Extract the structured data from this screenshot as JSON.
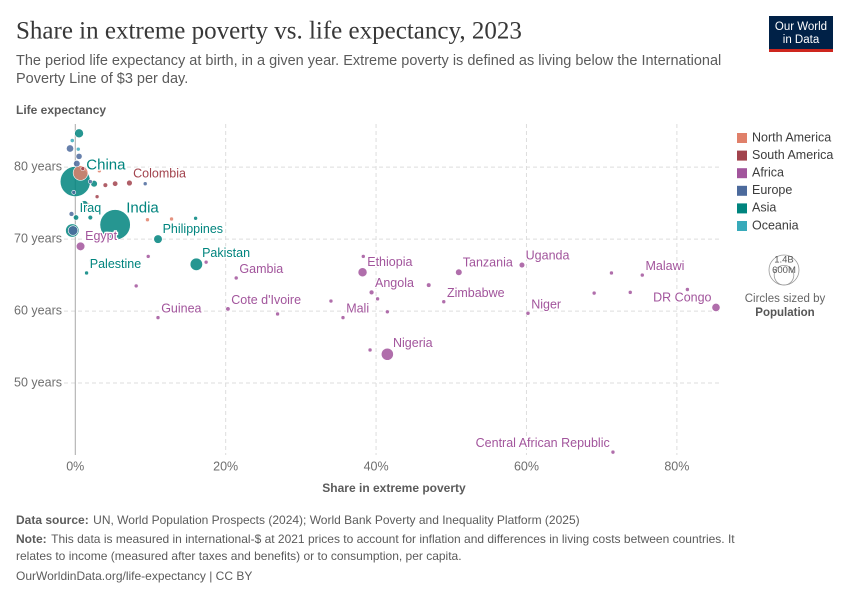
{
  "chart_data": {
    "type": "scatter",
    "title": "Share in extreme poverty vs. life expectancy, 2023",
    "subtitle": [
      "The period life expectancy at birth, in a given year. Extreme poverty is defined as living below the International",
      "Poverty Line of $3 per day."
    ],
    "y_label": "Life expectancy",
    "x_label": "Share in extreme poverty",
    "logo": [
      "Our World",
      "in Data"
    ],
    "xlim": [
      -1.5,
      86
    ],
    "ylim": [
      40,
      86
    ],
    "xticks": [
      {
        "value": 0,
        "label": "0%"
      },
      {
        "value": 20,
        "label": "20%"
      },
      {
        "value": 40,
        "label": "40%"
      },
      {
        "value": 60,
        "label": "60%"
      },
      {
        "value": 80,
        "label": "80%"
      }
    ],
    "yticks": [
      {
        "value": 50,
        "label": "50 years"
      },
      {
        "value": 60,
        "label": "60 years"
      },
      {
        "value": 70,
        "label": "70 years"
      },
      {
        "value": 80,
        "label": "80 years"
      }
    ],
    "grid": true,
    "legend_position": "right",
    "size_legend": {
      "title": "Circles sized by",
      "label": "Population",
      "values": [
        {
          "value": 1400,
          "label": "1.4B"
        },
        {
          "value": 600,
          "label": "600M"
        }
      ]
    },
    "series": [
      {
        "name": "North America",
        "color": "#e0806a",
        "x": [
          0.7,
          3.2,
          12.8,
          1.5,
          9.6
        ],
        "values": [
          79.2,
          79.5,
          72.8,
          74.5,
          72.7
        ],
        "sizes": [
          340,
          6,
          4,
          130,
          3
        ],
        "labels": [
          null,
          null,
          null,
          null,
          null
        ]
      },
      {
        "name": "South America",
        "color": "#a2434d",
        "x": [
          7.2,
          2.9,
          5.3,
          4.0,
          1.0,
          2.2
        ],
        "values": [
          77.8,
          75.9,
          77.7,
          77.5,
          79.8,
          74.0
        ],
        "sizes": [
          52,
          10,
          46,
          34,
          20,
          12
        ],
        "labels": [
          "Colombia",
          null,
          null,
          null,
          null,
          null
        ]
      },
      {
        "name": "Africa",
        "color": "#a2559c",
        "x": [
          0.7,
          38.2,
          41.5,
          51.0,
          59.4,
          75.4,
          85.2,
          49.0,
          60.2,
          39.4,
          35.6,
          21.4,
          20.3,
          11.0,
          71.5,
          71.3,
          73.8,
          69.0,
          81.4,
          47.0,
          40.2,
          26.9,
          34.0,
          39.2,
          38.3,
          9.7,
          8.1,
          17.4,
          41.5
        ],
        "values": [
          69.0,
          65.4,
          54.0,
          65.4,
          66.4,
          65.0,
          60.5,
          61.3,
          59.7,
          62.6,
          59.1,
          64.6,
          60.3,
          59.1,
          40.4,
          65.3,
          62.6,
          62.5,
          63.0,
          63.6,
          61.7,
          59.6,
          61.4,
          54.6,
          67.6,
          67.6,
          63.5,
          66.8,
          59.9
        ],
        "sizes": [
          115,
          128,
          230,
          68,
          50,
          21,
          105,
          17,
          27,
          37,
          24,
          3,
          31,
          14,
          5,
          10,
          8,
          13,
          14,
          33,
          9,
          6,
          4,
          2,
          3,
          2,
          3,
          2,
          18
        ],
        "labels": [
          "Egypt",
          "Ethiopia",
          "Nigeria",
          "Tanzania",
          "Uganda",
          "Malawi",
          "DR Congo",
          "Zimbabwe",
          "Niger",
          "Angola",
          "Mali",
          "Gambia",
          "Cote d'Ivoire",
          "Guinea",
          "Central African Republic",
          null,
          null,
          null,
          null,
          null,
          null,
          null,
          null,
          null,
          null,
          null,
          null,
          null,
          null
        ]
      },
      {
        "name": "Europe",
        "color": "#4c6a9c",
        "x": [
          -0.7,
          -0.3,
          0.2,
          9.3,
          -0.5,
          0.5,
          2.0,
          -0.2
        ],
        "values": [
          82.6,
          71.2,
          80.5,
          77.7,
          73.5,
          81.5,
          78.0,
          76.5
        ],
        "sizes": [
          83,
          145,
          68,
          3,
          38,
          60,
          19,
          10
        ],
        "labels": [
          null,
          null,
          null,
          null,
          null,
          null,
          null,
          null
        ]
      },
      {
        "name": "Asia",
        "color": "#00847e",
        "x": [
          0.0,
          5.3,
          11.0,
          16.1,
          0.1,
          1.5,
          0.5,
          1.2,
          2.5,
          16.0,
          -0.4,
          2.0
        ],
        "values": [
          78.0,
          72.0,
          70.0,
          66.5,
          73.0,
          65.3,
          84.7,
          74.8,
          77.7,
          72.9,
          71.2,
          73.0
        ],
        "sizes": [
          1410,
          1440,
          115,
          240,
          45,
          5,
          125,
          100,
          70,
          4,
          280,
          35
        ],
        "labels": [
          "China",
          "India",
          "Philippines",
          "Pakistan",
          "Iraq",
          "Palestine",
          null,
          null,
          null,
          null,
          null,
          null
        ]
      },
      {
        "name": "Oceania",
        "color": "#38aaba",
        "x": [
          -0.4,
          0.4,
          2.1
        ],
        "values": [
          83.7,
          82.5,
          67.0
        ],
        "sizes": [
          27,
          5,
          10
        ],
        "labels": [
          null,
          null,
          null
        ]
      }
    ],
    "source_label": "Data source:",
    "source": "UN, World Population Prospects (2024); World Bank Poverty and Inequality Platform (2025)",
    "note_label": "Note:",
    "note": [
      "This data is measured in international-$ at 2021 prices to account for inflation and differences in living costs between countries. It",
      "relates to income (measured after taxes and benefits) or to consumption, per capita."
    ],
    "footer": "OurWorldinData.org/life-expectancy | CC BY"
  }
}
